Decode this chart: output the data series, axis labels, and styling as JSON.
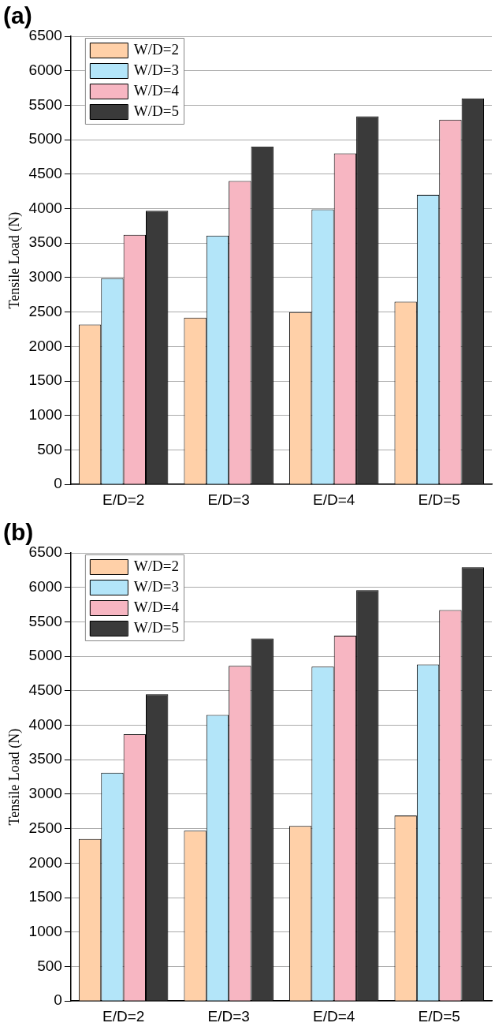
{
  "chart_data": [
    {
      "type": "bar",
      "title": "(a)",
      "ylabel": "Tensile Load (N)",
      "categories": [
        "E/D=2",
        "E/D=3",
        "E/D=4",
        "E/D=5"
      ],
      "series": [
        {
          "name": "W/D=2",
          "color": "#ffd0a8",
          "values": [
            2320,
            2420,
            2500,
            2650
          ]
        },
        {
          "name": "W/D=3",
          "color": "#b3e5f9",
          "values": [
            2990,
            3610,
            3990,
            4200
          ]
        },
        {
          "name": "W/D=4",
          "color": "#f7b6c2",
          "values": [
            3620,
            4400,
            4800,
            5290
          ]
        },
        {
          "name": "W/D=5",
          "color": "#3a3a3a",
          "values": [
            3970,
            4900,
            5340,
            5600
          ]
        }
      ],
      "ylim": [
        0,
        6500
      ],
      "yticks": [
        0,
        500,
        1000,
        1500,
        2000,
        2500,
        3000,
        3500,
        4000,
        4500,
        5000,
        5500,
        6000,
        6500
      ],
      "grid": "y",
      "legend": "top left"
    },
    {
      "type": "bar",
      "title": "(b)",
      "ylabel": "Tensile Load (N)",
      "categories": [
        "E/D=2",
        "E/D=3",
        "E/D=4",
        "E/D=5"
      ],
      "series": [
        {
          "name": "W/D=2",
          "color": "#ffd0a8",
          "values": [
            2350,
            2470,
            2540,
            2690
          ]
        },
        {
          "name": "W/D=3",
          "color": "#b3e5f9",
          "values": [
            3310,
            4150,
            4850,
            4880
          ]
        },
        {
          "name": "W/D=4",
          "color": "#f7b6c2",
          "values": [
            3870,
            4860,
            5300,
            5670
          ]
        },
        {
          "name": "W/D=5",
          "color": "#3a3a3a",
          "values": [
            4450,
            5260,
            5960,
            6290
          ]
        }
      ],
      "ylim": [
        0,
        6500
      ],
      "yticks": [
        0,
        500,
        1000,
        1500,
        2000,
        2500,
        3000,
        3500,
        4000,
        4500,
        5000,
        5500,
        6000,
        6500
      ],
      "grid": "y",
      "legend": "top left"
    }
  ]
}
